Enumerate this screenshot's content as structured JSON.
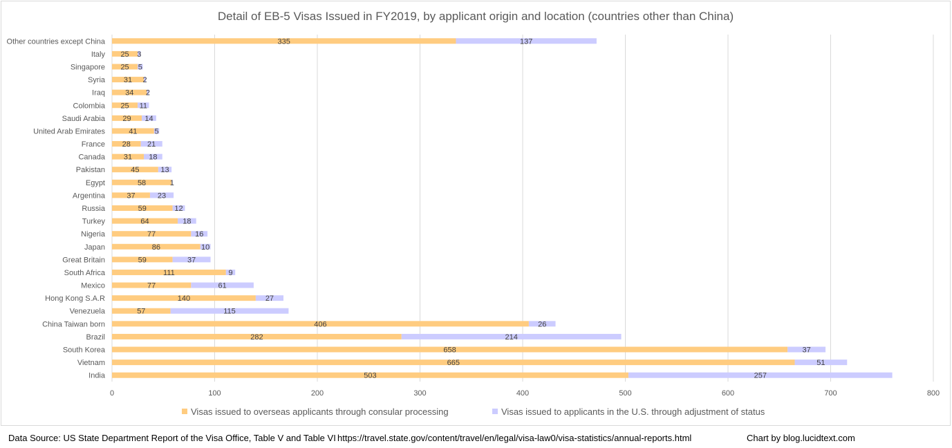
{
  "chart_data": {
    "type": "bar",
    "orientation": "horizontal",
    "stacked": true,
    "title": "Detail of EB-5 Visas Issued in FY2019, by applicant origin and location (countries other than China)",
    "xlabel": "",
    "ylabel": "",
    "xlim": [
      0,
      800
    ],
    "xticks": [
      0,
      100,
      200,
      300,
      400,
      500,
      600,
      700,
      800
    ],
    "grid": true,
    "legend_position": "bottom",
    "categories": [
      "Other countries except China",
      "Italy",
      "Singapore",
      "Syria",
      "Iraq",
      "Colombia",
      "Saudi Arabia",
      "United Arab Emirates",
      "France",
      "Canada",
      "Pakistan",
      "Egypt",
      "Argentina",
      "Russia",
      "Turkey",
      "Nigeria",
      "Japan",
      "Great Britain",
      "South Africa",
      "Mexico",
      "Hong Kong S.A.R",
      "Venezuela",
      "China Taiwan born",
      "Brazil",
      "South Korea",
      "Vietnam",
      "India"
    ],
    "series": [
      {
        "name": "Visas issued to overseas applicants through consular processing",
        "color": "#FFCC80",
        "values": [
          335,
          25,
          25,
          31,
          34,
          25,
          29,
          41,
          28,
          31,
          45,
          58,
          37,
          59,
          64,
          77,
          86,
          59,
          111,
          77,
          140,
          57,
          406,
          282,
          658,
          665,
          503
        ]
      },
      {
        "name": "Visas issued to applicants in the U.S. through adjustment of status",
        "color": "#CCCCFF",
        "values": [
          137,
          3,
          5,
          2,
          2,
          11,
          14,
          5,
          21,
          18,
          13,
          1,
          23,
          12,
          18,
          16,
          10,
          37,
          9,
          61,
          27,
          115,
          26,
          214,
          37,
          51,
          257
        ]
      }
    ]
  },
  "footer": {
    "source": "Data Source: US State Department Report of the Visa Office, Table V and Table VI",
    "url": "https://travel.state.gov/content/travel/en/legal/visa-law0/visa-statistics/annual-reports.html",
    "credit": "Chart by blog.lucidtext.com"
  }
}
